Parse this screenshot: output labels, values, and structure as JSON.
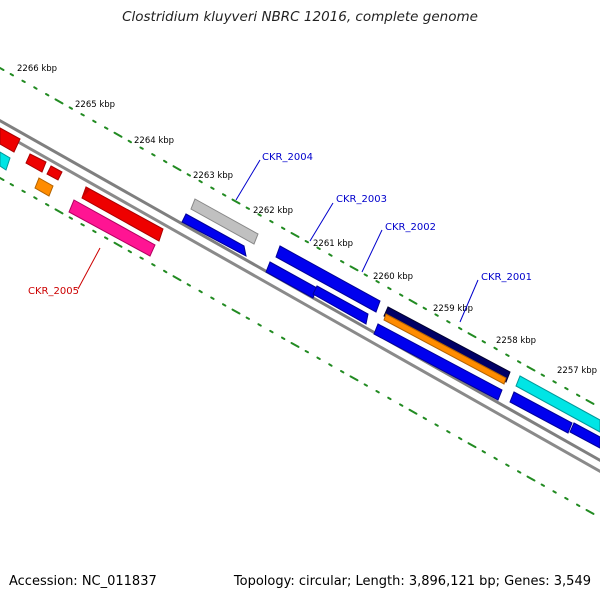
{
  "title": "Clostridium kluyveri NBRC 12016, complete genome",
  "footer": {
    "accession": "Accession: NC_011837",
    "summary": "Topology: circular; Length: 3,896,121 bp; Genes: 3,549"
  },
  "colors": {
    "tick_green": "#228b22",
    "backbone": "#7f7f7f",
    "label_blue": "#0000cc",
    "label_red": "#cc0000",
    "blue": "#0000ee",
    "red": "#ee0000",
    "gray": "#bbbbbb",
    "navy": "#000066",
    "orange": "#ff8c00",
    "cyan": "#00e5e5",
    "pink": "#ff1493"
  },
  "kbp_labels": [
    "2266 kbp",
    "2265 kbp",
    "2264 kbp",
    "2263 kbp",
    "2262 kbp",
    "2261 kbp",
    "2260 kbp",
    "2259 kbp",
    "2258 kbp",
    "2257 kbp"
  ],
  "gene_labels": [
    {
      "text": "CKR_2004",
      "color": "blue"
    },
    {
      "text": "CKR_2003",
      "color": "blue"
    },
    {
      "text": "CKR_2002",
      "color": "blue"
    },
    {
      "text": "CKR_2001",
      "color": "blue"
    },
    {
      "text": "CKR_2005",
      "color": "red"
    }
  ]
}
